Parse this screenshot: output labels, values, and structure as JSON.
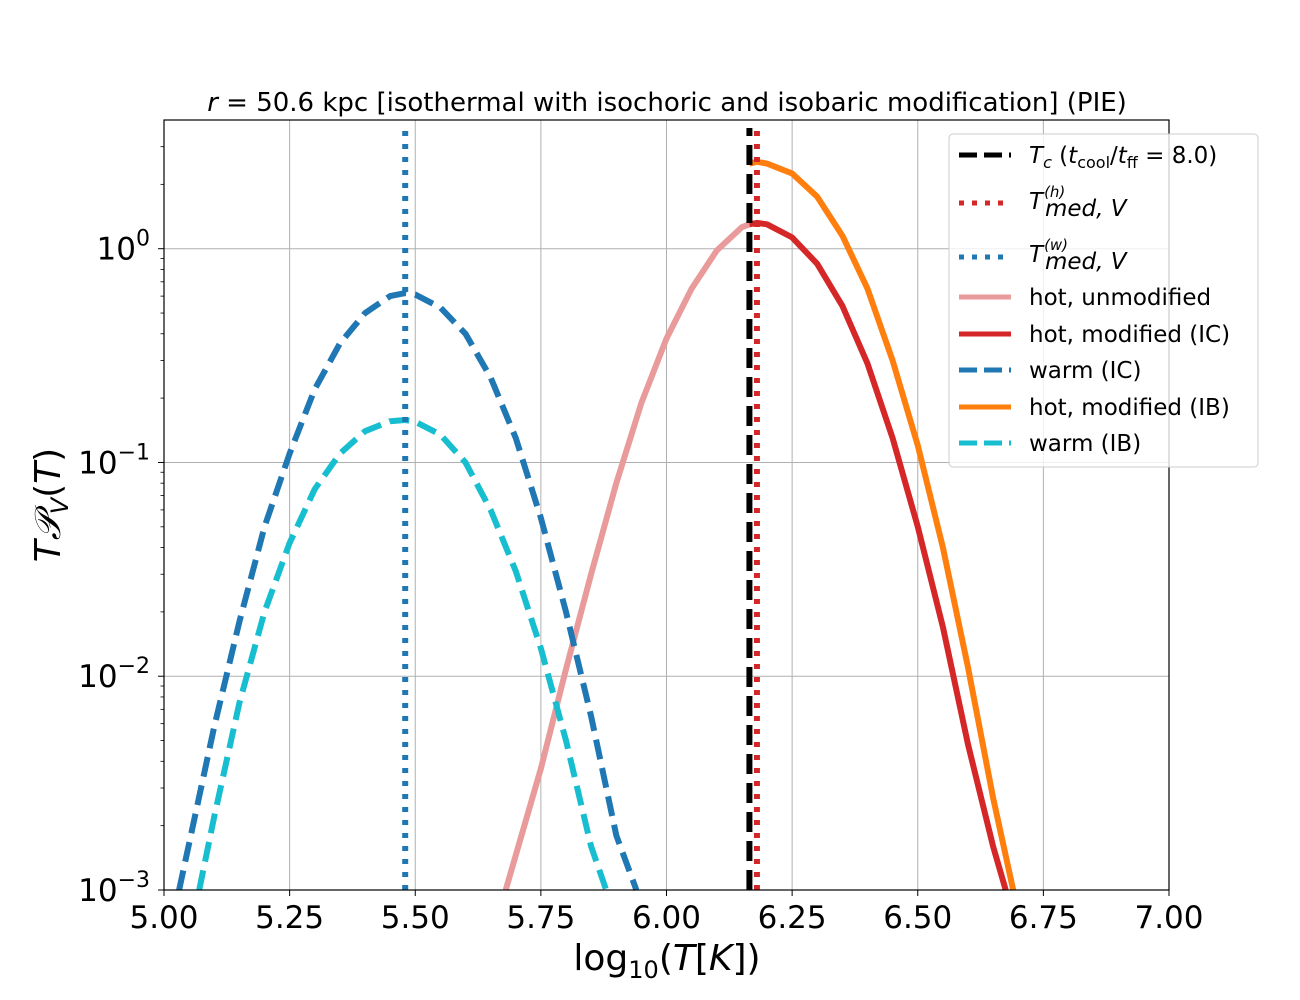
{
  "chart_data": {
    "type": "line",
    "title": "r = 50.6 kpc [isothermal with isochoric and isobaric modification] (PIE)",
    "title_parts": {
      "var": "r",
      "rest": " = 50.6 kpc [isothermal with isochoric and isobaric modification] (PIE)"
    },
    "xlabel": "log10(T[K])",
    "ylabel": "T𝒫V(T)",
    "xlim": [
      5.0,
      7.0
    ],
    "ylim": [
      0.001,
      4.0
    ],
    "yscale": "log",
    "grid": true,
    "legend_position": "top-right",
    "x_ticks": [
      5.0,
      5.25,
      5.5,
      5.75,
      6.0,
      6.25,
      6.5,
      6.75,
      7.0
    ],
    "x_tick_labels": [
      "5.00",
      "5.25",
      "5.50",
      "5.75",
      "6.00",
      "6.25",
      "6.50",
      "6.75",
      "7.00"
    ],
    "y_ticks": [
      {
        "value": 0.001,
        "base": "10",
        "exp": "−3"
      },
      {
        "value": 0.01,
        "base": "10",
        "exp": "−2"
      },
      {
        "value": 0.1,
        "base": "10",
        "exp": "−1"
      },
      {
        "value": 1.0,
        "base": "10",
        "exp": "0"
      }
    ],
    "vertical_lines": [
      {
        "name": "T_c (t_cool/t_ff = 8.0)",
        "x": 6.165,
        "color": "#000000",
        "style": "dashed"
      },
      {
        "name": "T_med,V^(h)",
        "x": 6.18,
        "color": "#d62728",
        "style": "dotted"
      },
      {
        "name": "T_med,V^(w)",
        "x": 5.48,
        "color": "#1f77b4",
        "style": "dotted"
      }
    ],
    "series": [
      {
        "name": "hot, unmodified",
        "color": "#e99a9b",
        "style": "solid",
        "x": [
          5.68,
          5.75,
          5.8,
          5.85,
          5.9,
          5.95,
          6.0,
          6.05,
          6.1,
          6.15,
          6.165
        ],
        "y": [
          0.001,
          0.0037,
          0.0108,
          0.03,
          0.08,
          0.19,
          0.38,
          0.65,
          0.98,
          1.26,
          1.3
        ]
      },
      {
        "name": "hot, modified (IC)",
        "color": "#d62728",
        "style": "solid",
        "x": [
          6.165,
          6.18,
          6.2,
          6.25,
          6.3,
          6.35,
          6.4,
          6.45,
          6.5,
          6.55,
          6.6,
          6.65,
          6.675
        ],
        "y": [
          1.3,
          1.32,
          1.3,
          1.13,
          0.85,
          0.54,
          0.29,
          0.13,
          0.05,
          0.017,
          0.0048,
          0.0016,
          0.001
        ]
      },
      {
        "name": "warm (IC)",
        "color": "#1f77b4",
        "style": "dashed",
        "x": [
          5.03,
          5.1,
          5.15,
          5.2,
          5.25,
          5.3,
          5.35,
          5.4,
          5.45,
          5.48,
          5.5,
          5.55,
          5.6,
          5.65,
          5.7,
          5.75,
          5.8,
          5.85,
          5.9,
          5.94
        ],
        "y": [
          0.001,
          0.0058,
          0.018,
          0.05,
          0.11,
          0.22,
          0.36,
          0.5,
          0.6,
          0.62,
          0.61,
          0.53,
          0.4,
          0.25,
          0.13,
          0.055,
          0.02,
          0.0065,
          0.0018,
          0.001
        ]
      },
      {
        "name": "hot, modified (IB)",
        "color": "#ff7f0e",
        "style": "solid",
        "x": [
          6.165,
          6.18,
          6.2,
          6.25,
          6.3,
          6.35,
          6.4,
          6.45,
          6.5,
          6.55,
          6.6,
          6.65,
          6.69
        ],
        "y": [
          2.5,
          2.55,
          2.5,
          2.25,
          1.75,
          1.15,
          0.65,
          0.3,
          0.12,
          0.04,
          0.011,
          0.0027,
          0.001
        ]
      },
      {
        "name": "warm (IB)",
        "color": "#17becf",
        "style": "dashed",
        "x": [
          5.07,
          5.1,
          5.15,
          5.2,
          5.25,
          5.3,
          5.35,
          5.4,
          5.45,
          5.48,
          5.5,
          5.55,
          5.6,
          5.65,
          5.7,
          5.75,
          5.8,
          5.85,
          5.88
        ],
        "y": [
          0.001,
          0.0022,
          0.0075,
          0.02,
          0.042,
          0.075,
          0.11,
          0.14,
          0.156,
          0.158,
          0.155,
          0.135,
          0.1,
          0.06,
          0.031,
          0.0135,
          0.005,
          0.0016,
          0.001
        ]
      }
    ],
    "legend": {
      "tc_label": {
        "sym": "T",
        "sub": "c",
        "open": " (",
        "t1": "t",
        "sub1": "cool",
        "slash": "/",
        "t2": "t",
        "sub2": "ff",
        "rest": " = 8.0)"
      },
      "med_h_label": {
        "sym": "T",
        "sup": "(h)",
        "sub": "med, V"
      },
      "med_w_label": {
        "sym": "T",
        "sup": "(w)",
        "sub": "med, V"
      },
      "entries": [
        "hot, unmodified",
        "hot, modified (IC)",
        "warm (IC)",
        "hot, modified (IB)",
        "warm (IB)"
      ]
    }
  }
}
